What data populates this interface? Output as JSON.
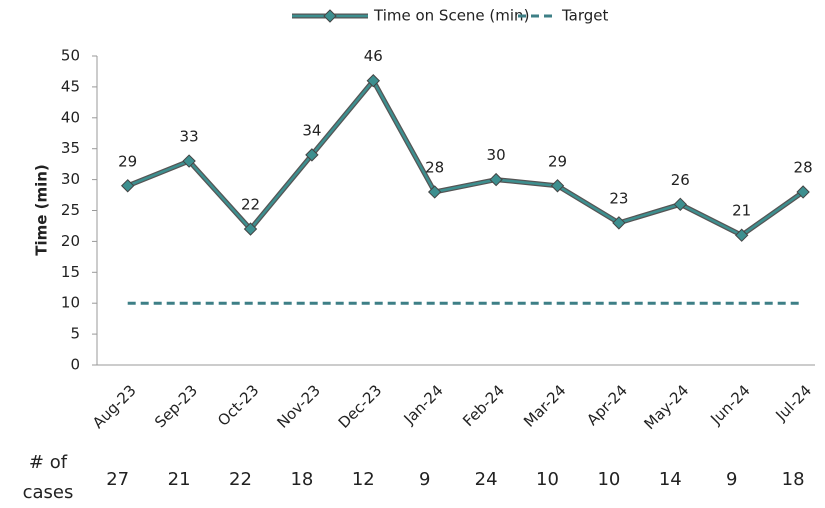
{
  "chart_data": {
    "type": "line",
    "categories": [
      "Aug-23",
      "Sep-23",
      "Oct-23",
      "Nov-23",
      "Dec-23",
      "Jan-24",
      "Feb-24",
      "Mar-24",
      "Apr-24",
      "May-24",
      "Jun-24",
      "Jul-24"
    ],
    "series": [
      {
        "name": "Time on Scene (min)",
        "color": "#3d8f8f",
        "values": [
          29,
          33,
          22,
          34,
          46,
          28,
          30,
          29,
          23,
          26,
          21,
          28
        ]
      },
      {
        "name": "Target",
        "color": "#3d7f86",
        "values": [
          10,
          10,
          10,
          10,
          10,
          10,
          10,
          10,
          10,
          10,
          10,
          10
        ]
      }
    ],
    "y_label": "Time (min)",
    "ylim": [
      0,
      50
    ],
    "yticks": [
      0,
      5,
      10,
      15,
      20,
      25,
      30,
      35,
      40,
      45,
      50
    ],
    "legend": "top",
    "row_label": "# of cases",
    "cases": [
      27,
      21,
      22,
      18,
      12,
      9,
      24,
      10,
      10,
      14,
      9,
      18
    ]
  }
}
